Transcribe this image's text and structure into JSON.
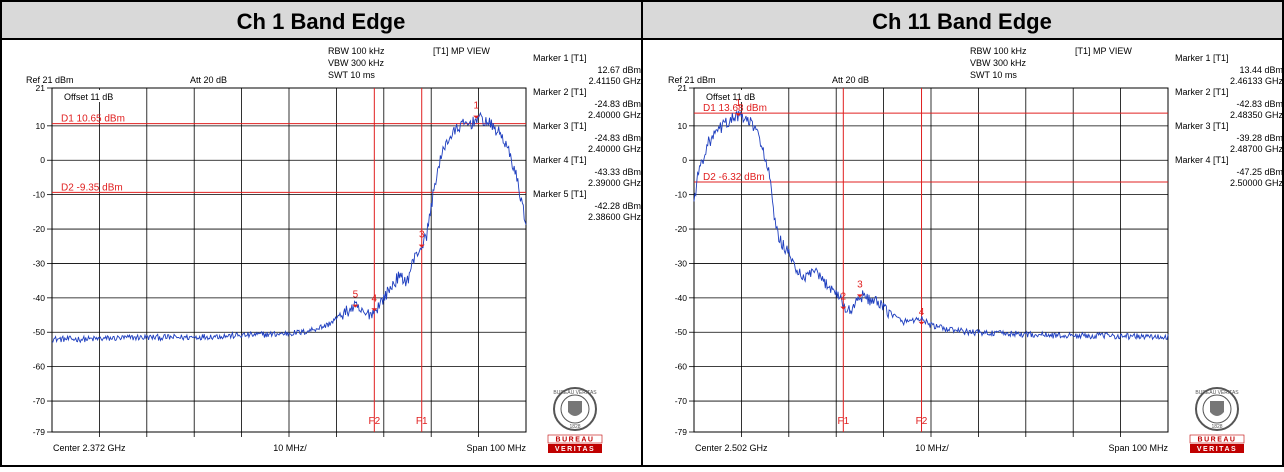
{
  "panels": [
    {
      "title": "Ch 1 Band Edge",
      "header": {
        "rbw": "RBW 100 kHz",
        "vbw": "VBW 300 kHz",
        "swt": "SWT 10 ms",
        "view": "[T1] MP VIEW",
        "ref": "Ref 21 dBm",
        "att": "Att  20 dB",
        "offset": "Offset 11 dB"
      },
      "footer": {
        "center": "Center 2.372 GHz",
        "div": "10 MHz/",
        "span": "Span 100 MHz"
      },
      "markers": [
        {
          "label": "Marker 1 [T1]",
          "level": "12.67 dBm",
          "freq": "2.41150 GHz"
        },
        {
          "label": "Marker 2 [T1]",
          "level": "-24.83 dBm",
          "freq": "2.40000 GHz"
        },
        {
          "label": "Marker 3 [T1]",
          "level": "-24.83 dBm",
          "freq": "2.40000 GHz"
        },
        {
          "label": "Marker 4 [T1]",
          "level": "-43.33 dBm",
          "freq": "2.39000 GHz"
        },
        {
          "label": "Marker 5 [T1]",
          "level": "-42.28 dBm",
          "freq": "2.38600 GHz"
        }
      ],
      "display_lines": [
        {
          "label": "D1 10.65 dBm",
          "value": 10.65
        },
        {
          "label": "D2 -9.35 dBm",
          "value": -9.35
        }
      ],
      "freq_lines": [
        {
          "label": "F2",
          "x": 2.39
        },
        {
          "label": "F1",
          "x": 2.4
        }
      ],
      "marker_points": [
        {
          "label": "1",
          "x": 2.4115,
          "y": 12.67
        },
        {
          "label": "3",
          "x": 2.4,
          "y": -24.83
        },
        {
          "label": "4",
          "x": 2.39,
          "y": -43.33
        },
        {
          "label": "5",
          "x": 2.386,
          "y": -42.28
        }
      ]
    },
    {
      "title": "Ch 11 Band Edge",
      "header": {
        "rbw": "RBW 100 kHz",
        "vbw": "VBW 300 kHz",
        "swt": "SWT 10 ms",
        "view": "[T1] MP VIEW",
        "ref": "Ref 21 dBm",
        "att": "Att  20 dB",
        "offset": "Offset 11 dB"
      },
      "footer": {
        "center": "Center 2.502 GHz",
        "div": "10 MHz/",
        "span": "Span 100 MHz"
      },
      "markers": [
        {
          "label": "Marker 1 [T1]",
          "level": "13.44 dBm",
          "freq": "2.46133 GHz"
        },
        {
          "label": "Marker 2 [T1]",
          "level": "-42.83 dBm",
          "freq": "2.48350 GHz"
        },
        {
          "label": "Marker 3 [T1]",
          "level": "-39.28 dBm",
          "freq": "2.48700 GHz"
        },
        {
          "label": "Marker 4 [T1]",
          "level": "-47.25 dBm",
          "freq": "2.50000 GHz"
        }
      ],
      "display_lines": [
        {
          "label": "D1 13.68 dBm",
          "value": 13.68
        },
        {
          "label": "D2 -6.32 dBm",
          "value": -6.32
        }
      ],
      "freq_lines": [
        {
          "label": "F1",
          "x": 2.4835
        },
        {
          "label": "F2",
          "x": 2.5
        }
      ],
      "marker_points": [
        {
          "label": "1",
          "x": 2.46133,
          "y": 13.44
        },
        {
          "label": "2",
          "x": 2.4835,
          "y": -42.83
        },
        {
          "label": "3",
          "x": 2.487,
          "y": -39.28
        },
        {
          "label": "4",
          "x": 2.5,
          "y": -47.25
        }
      ]
    }
  ],
  "logo": {
    "ring": "BUREAU VERITAS",
    "year": "1828",
    "word1": "BUREAU",
    "word2": "VERITAS"
  },
  "chart_data": [
    {
      "type": "line",
      "title": "Ch 1 Band Edge",
      "xlabel": "",
      "ylabel": "",
      "xlim": [
        2.322,
        2.422
      ],
      "ylim": [
        -79,
        21
      ],
      "ytick_labels": [
        "21",
        "10",
        "0",
        "-10",
        "-20",
        "-30",
        "-40",
        "-50",
        "-60",
        "-70",
        "-79"
      ],
      "grid": true,
      "series": [
        {
          "x": [
            2.322,
            2.33,
            2.34,
            2.35,
            2.36,
            2.37,
            2.375,
            2.38,
            2.383,
            2.386,
            2.388,
            2.39,
            2.392,
            2.395,
            2.397,
            2.398,
            2.399,
            2.4,
            2.401,
            2.403,
            2.405,
            2.408,
            2.411,
            2.4115,
            2.414,
            2.417,
            2.419,
            2.42,
            2.422
          ],
          "values": [
            -52,
            -52,
            -51.5,
            -51.5,
            -51,
            -50.5,
            -50,
            -48,
            -45,
            -42.5,
            -45,
            -44,
            -40,
            -34,
            -35,
            -30,
            -27,
            -25,
            -22,
            -5,
            5,
            10,
            11,
            12.5,
            11,
            7,
            0,
            -5,
            -18
          ]
        }
      ]
    },
    {
      "type": "line",
      "title": "Ch 11 Band Edge",
      "xlabel": "",
      "ylabel": "",
      "xlim": [
        2.452,
        2.552
      ],
      "ylim": [
        -79,
        21
      ],
      "ytick_labels": [
        "21",
        "10",
        "0",
        "-10",
        "-20",
        "-30",
        "-40",
        "-50",
        "-60",
        "-70",
        "-79"
      ],
      "grid": true,
      "series": [
        {
          "x": [
            2.452,
            2.453,
            2.455,
            2.458,
            2.461,
            2.464,
            2.466,
            2.468,
            2.469,
            2.47,
            2.471,
            2.473,
            2.475,
            2.477,
            2.479,
            2.481,
            2.483,
            2.4835,
            2.485,
            2.487,
            2.49,
            2.493,
            2.496,
            2.5,
            2.502,
            2.505,
            2.51,
            2.52,
            2.53,
            2.54,
            2.552
          ],
          "values": [
            -12,
            -3,
            5,
            10,
            13,
            11,
            6,
            -5,
            -18,
            -23,
            -25,
            -30,
            -35,
            -32,
            -35,
            -37,
            -40,
            -42.8,
            -44,
            -39.3,
            -41,
            -44,
            -47,
            -46,
            -48,
            -49,
            -50,
            -50.5,
            -51,
            -51,
            -51.5
          ]
        }
      ]
    }
  ]
}
